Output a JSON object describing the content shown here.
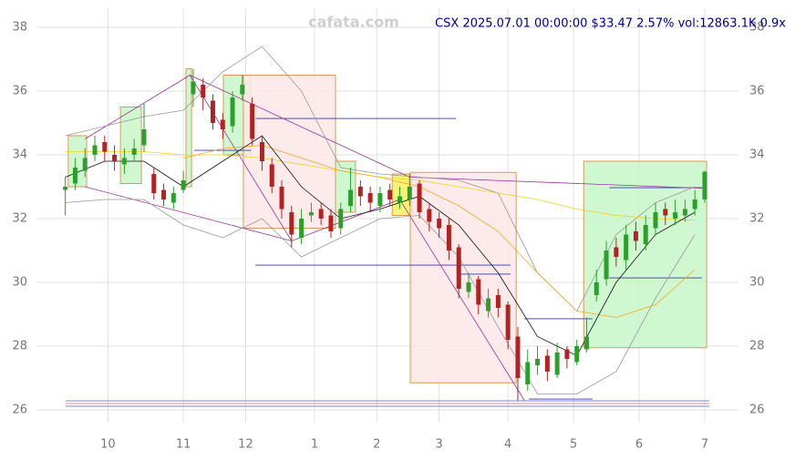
{
  "chart_data": {
    "type": "candlestick",
    "title": "CSX 2025.07.01 00:00:00 $33.47 2.57% vol:12863.1K 0.9x",
    "watermark": "cafata.com",
    "up_color": "#2ca02c",
    "down_color": "#b22222",
    "grid": true,
    "xlim": [
      -8.8,
      205.3
    ],
    "ylim": [
      25.6,
      38.6
    ],
    "xticks": [
      {
        "value": 13,
        "label": "10"
      },
      {
        "value": 36,
        "label": "11"
      },
      {
        "value": 55,
        "label": "12"
      },
      {
        "value": 76,
        "label": "1"
      },
      {
        "value": 95,
        "label": "2"
      },
      {
        "value": 114,
        "label": "3"
      },
      {
        "value": 135,
        "label": "4"
      },
      {
        "value": 155,
        "label": "5"
      },
      {
        "value": 175,
        "label": "6"
      },
      {
        "value": 195,
        "label": "7"
      }
    ],
    "yticks": [
      26,
      28,
      30,
      32,
      34,
      36,
      38
    ],
    "x": [
      0,
      3,
      6,
      9,
      12,
      15,
      18,
      21,
      24,
      27,
      30,
      33,
      36,
      39,
      42,
      45,
      48,
      51,
      54,
      57,
      60,
      63,
      66,
      69,
      72,
      75,
      78,
      81,
      84,
      87,
      90,
      93,
      96,
      99,
      102,
      105,
      108,
      111,
      114,
      117,
      120,
      123,
      126,
      129,
      132,
      135,
      138,
      141,
      144,
      147,
      150,
      153,
      156,
      159,
      162,
      165,
      168,
      171,
      174,
      177,
      180,
      183,
      186,
      189,
      192,
      195
    ],
    "open": [
      32.9,
      33.1,
      33.5,
      34.0,
      34.4,
      34.0,
      33.7,
      34.0,
      34.3,
      33.4,
      32.9,
      32.5,
      32.9,
      35.9,
      36.2,
      35.7,
      35.1,
      34.9,
      35.9,
      35.6,
      34.4,
      33.7,
      33.0,
      32.2,
      31.4,
      32.1,
      32.3,
      32.1,
      31.7,
      32.4,
      33.0,
      32.8,
      32.4,
      32.9,
      32.5,
      32.6,
      33.1,
      32.3,
      32.0,
      31.8,
      31.1,
      29.7,
      30.1,
      29.1,
      29.6,
      29.3,
      28.3,
      26.8,
      27.4,
      27.7,
      27.1,
      27.9,
      27.5,
      27.9,
      29.6,
      30.1,
      31.1,
      30.7,
      31.6,
      31.2,
      31.7,
      32.3,
      32.0,
      32.1,
      32.3,
      32.6
    ],
    "high": [
      33.3,
      33.9,
      34.2,
      34.6,
      34.6,
      34.3,
      34.2,
      34.5,
      35.6,
      33.6,
      33.1,
      33.0,
      33.5,
      36.7,
      36.4,
      35.9,
      35.3,
      36.0,
      36.5,
      35.8,
      34.6,
      33.9,
      33.2,
      32.4,
      32.3,
      32.5,
      32.5,
      32.3,
      32.5,
      33.6,
      33.2,
      33.0,
      33.0,
      33.1,
      33.0,
      33.4,
      33.2,
      32.5,
      32.2,
      32.0,
      31.2,
      30.3,
      30.2,
      29.8,
      29.8,
      29.4,
      28.6,
      27.9,
      28.0,
      27.9,
      28.1,
      28.0,
      28.2,
      28.9,
      30.4,
      31.3,
      31.4,
      31.8,
      31.9,
      32.1,
      32.5,
      32.5,
      32.6,
      32.6,
      32.9,
      33.5
    ],
    "low": [
      32.1,
      32.9,
      33.3,
      33.8,
      33.8,
      33.5,
      33.4,
      33.8,
      34.1,
      32.6,
      32.4,
      32.3,
      32.8,
      35.5,
      35.4,
      34.8,
      34.5,
      34.7,
      35.7,
      34.3,
      33.5,
      32.8,
      32.0,
      31.1,
      31.2,
      31.9,
      31.8,
      31.4,
      31.5,
      32.2,
      32.4,
      32.2,
      32.2,
      32.4,
      32.3,
      32.4,
      32.0,
      31.6,
      31.4,
      30.7,
      29.5,
      29.5,
      29.0,
      28.9,
      28.9,
      27.9,
      26.3,
      26.6,
      27.1,
      26.9,
      27.0,
      27.3,
      27.4,
      27.8,
      29.4,
      29.9,
      30.5,
      30.4,
      31.0,
      31.0,
      31.5,
      31.8,
      31.8,
      31.9,
      32.1,
      32.5
    ],
    "close": [
      33.0,
      33.6,
      33.9,
      34.3,
      34.1,
      33.8,
      33.9,
      34.2,
      34.8,
      32.8,
      32.6,
      32.8,
      33.2,
      36.3,
      35.8,
      35.0,
      34.8,
      35.8,
      36.2,
      34.5,
      33.8,
      33.0,
      32.3,
      31.5,
      32.0,
      32.2,
      32.0,
      31.6,
      32.3,
      32.9,
      32.7,
      32.5,
      32.8,
      32.6,
      32.7,
      33.0,
      32.2,
      31.9,
      31.7,
      31.0,
      29.8,
      30.0,
      29.3,
      29.5,
      29.2,
      28.2,
      27.0,
      27.5,
      27.6,
      27.2,
      27.8,
      27.6,
      28.0,
      28.3,
      30.0,
      31.0,
      30.8,
      31.5,
      31.3,
      31.8,
      32.2,
      32.1,
      32.2,
      32.3,
      32.6,
      33.47
    ],
    "overlay_x": [
      0,
      12,
      24,
      36,
      48,
      60,
      72,
      84,
      96,
      108,
      120,
      132,
      144,
      156,
      168,
      180,
      192
    ],
    "overlays": [
      {
        "color": "#999999",
        "values": [
          34.6,
          34.9,
          35.2,
          35.4,
          36.6,
          37.4,
          36.0,
          33.6,
          33.4,
          33.3,
          33.2,
          32.8,
          30.3,
          29.1,
          31.5,
          32.5,
          33.0
        ]
      },
      {
        "color": "#999999",
        "values": [
          32.5,
          32.6,
          32.6,
          31.8,
          31.4,
          32.0,
          30.8,
          31.4,
          32.0,
          32.1,
          30.8,
          28.6,
          26.5,
          26.5,
          27.2,
          29.5,
          31.5
        ]
      },
      {
        "color": "#f2d21b",
        "values": [
          34.1,
          34.1,
          34.1,
          34.0,
          34.0,
          33.9,
          33.7,
          33.5,
          33.3,
          33.2,
          33.0,
          32.8,
          32.6,
          32.3,
          32.1,
          32.0,
          31.95
        ]
      },
      {
        "color": "#f5a623",
        "values": [
          null,
          null,
          null,
          33.9,
          34.2,
          34.3,
          33.9,
          33.5,
          33.3,
          33.0,
          32.4,
          31.6,
          30.3,
          29.1,
          28.9,
          29.3,
          30.4
        ]
      },
      {
        "color": "#111111",
        "values": [
          33.3,
          33.8,
          33.8,
          33.0,
          33.8,
          34.6,
          33.0,
          32.0,
          32.3,
          32.7,
          31.8,
          30.3,
          28.3,
          27.7,
          30.0,
          31.5,
          32.2
        ]
      }
    ],
    "zones": [
      {
        "x": [
          0.9,
          6.5
        ],
        "y": [
          33.0,
          34.6
        ],
        "color": "#c8f7c8"
      },
      {
        "x": [
          16.8,
          23.2
        ],
        "y": [
          33.1,
          35.5
        ],
        "color": "#c8f7c8"
      },
      {
        "x": [
          36.8,
          38.5
        ],
        "y": [
          33.0,
          36.7
        ],
        "color": "#c8f7c8"
      },
      {
        "x": [
          48.2,
          56.6
        ],
        "y": [
          34.0,
          36.5
        ],
        "color": "#c8f7c8"
      },
      {
        "x": [
          54.3,
          82.4
        ],
        "y": [
          31.7,
          36.5
        ],
        "color": "#fde8e8"
      },
      {
        "x": [
          82.4,
          88.5
        ],
        "y": [
          32.2,
          33.8
        ],
        "color": "#c8f7c8"
      },
      {
        "x": [
          99.7,
          105.8
        ],
        "y": [
          32.1,
          33.4
        ],
        "color": "#f7f25a"
      },
      {
        "x": [
          105.2,
          137.5
        ],
        "y": [
          26.85,
          33.45
        ],
        "color": "#fde8e8"
      },
      {
        "x": [
          158.1,
          195.6
        ],
        "y": [
          27.95,
          33.8
        ],
        "color": "#c8f7c8"
      }
    ],
    "level_color": "#3535b5",
    "levels": [
      {
        "x": [
          58,
          119.1
        ],
        "y": 35.14
      },
      {
        "x": [
          58,
          135.8
        ],
        "y": 30.54
      },
      {
        "x": [
          39.3,
          56.6
        ],
        "y": 34.14
      },
      {
        "x": [
          120.5,
          135.8
        ],
        "y": 30.26
      },
      {
        "x": [
          140,
          160.8
        ],
        "y": 28.86
      },
      {
        "x": [
          165.9,
          194.2
        ],
        "y": 32.97
      },
      {
        "x": [
          165.9,
          194.2
        ],
        "y": 30.14
      },
      {
        "x": [
          141.4,
          160.8
        ],
        "y": 26.34
      }
    ],
    "trend_color": "#993399",
    "trendlines": [
      {
        "x": [
          6,
          38,
          105,
          195
        ],
        "y": [
          34.5,
          36.5,
          33.3,
          32.95
        ]
      },
      {
        "x": [
          6,
          69,
          102,
          140
        ],
        "y": [
          33.0,
          31.3,
          32.6,
          26.3
        ]
      },
      {
        "x": [
          38,
          69
        ],
        "y": [
          36.5,
          31.3
        ]
      }
    ]
  }
}
